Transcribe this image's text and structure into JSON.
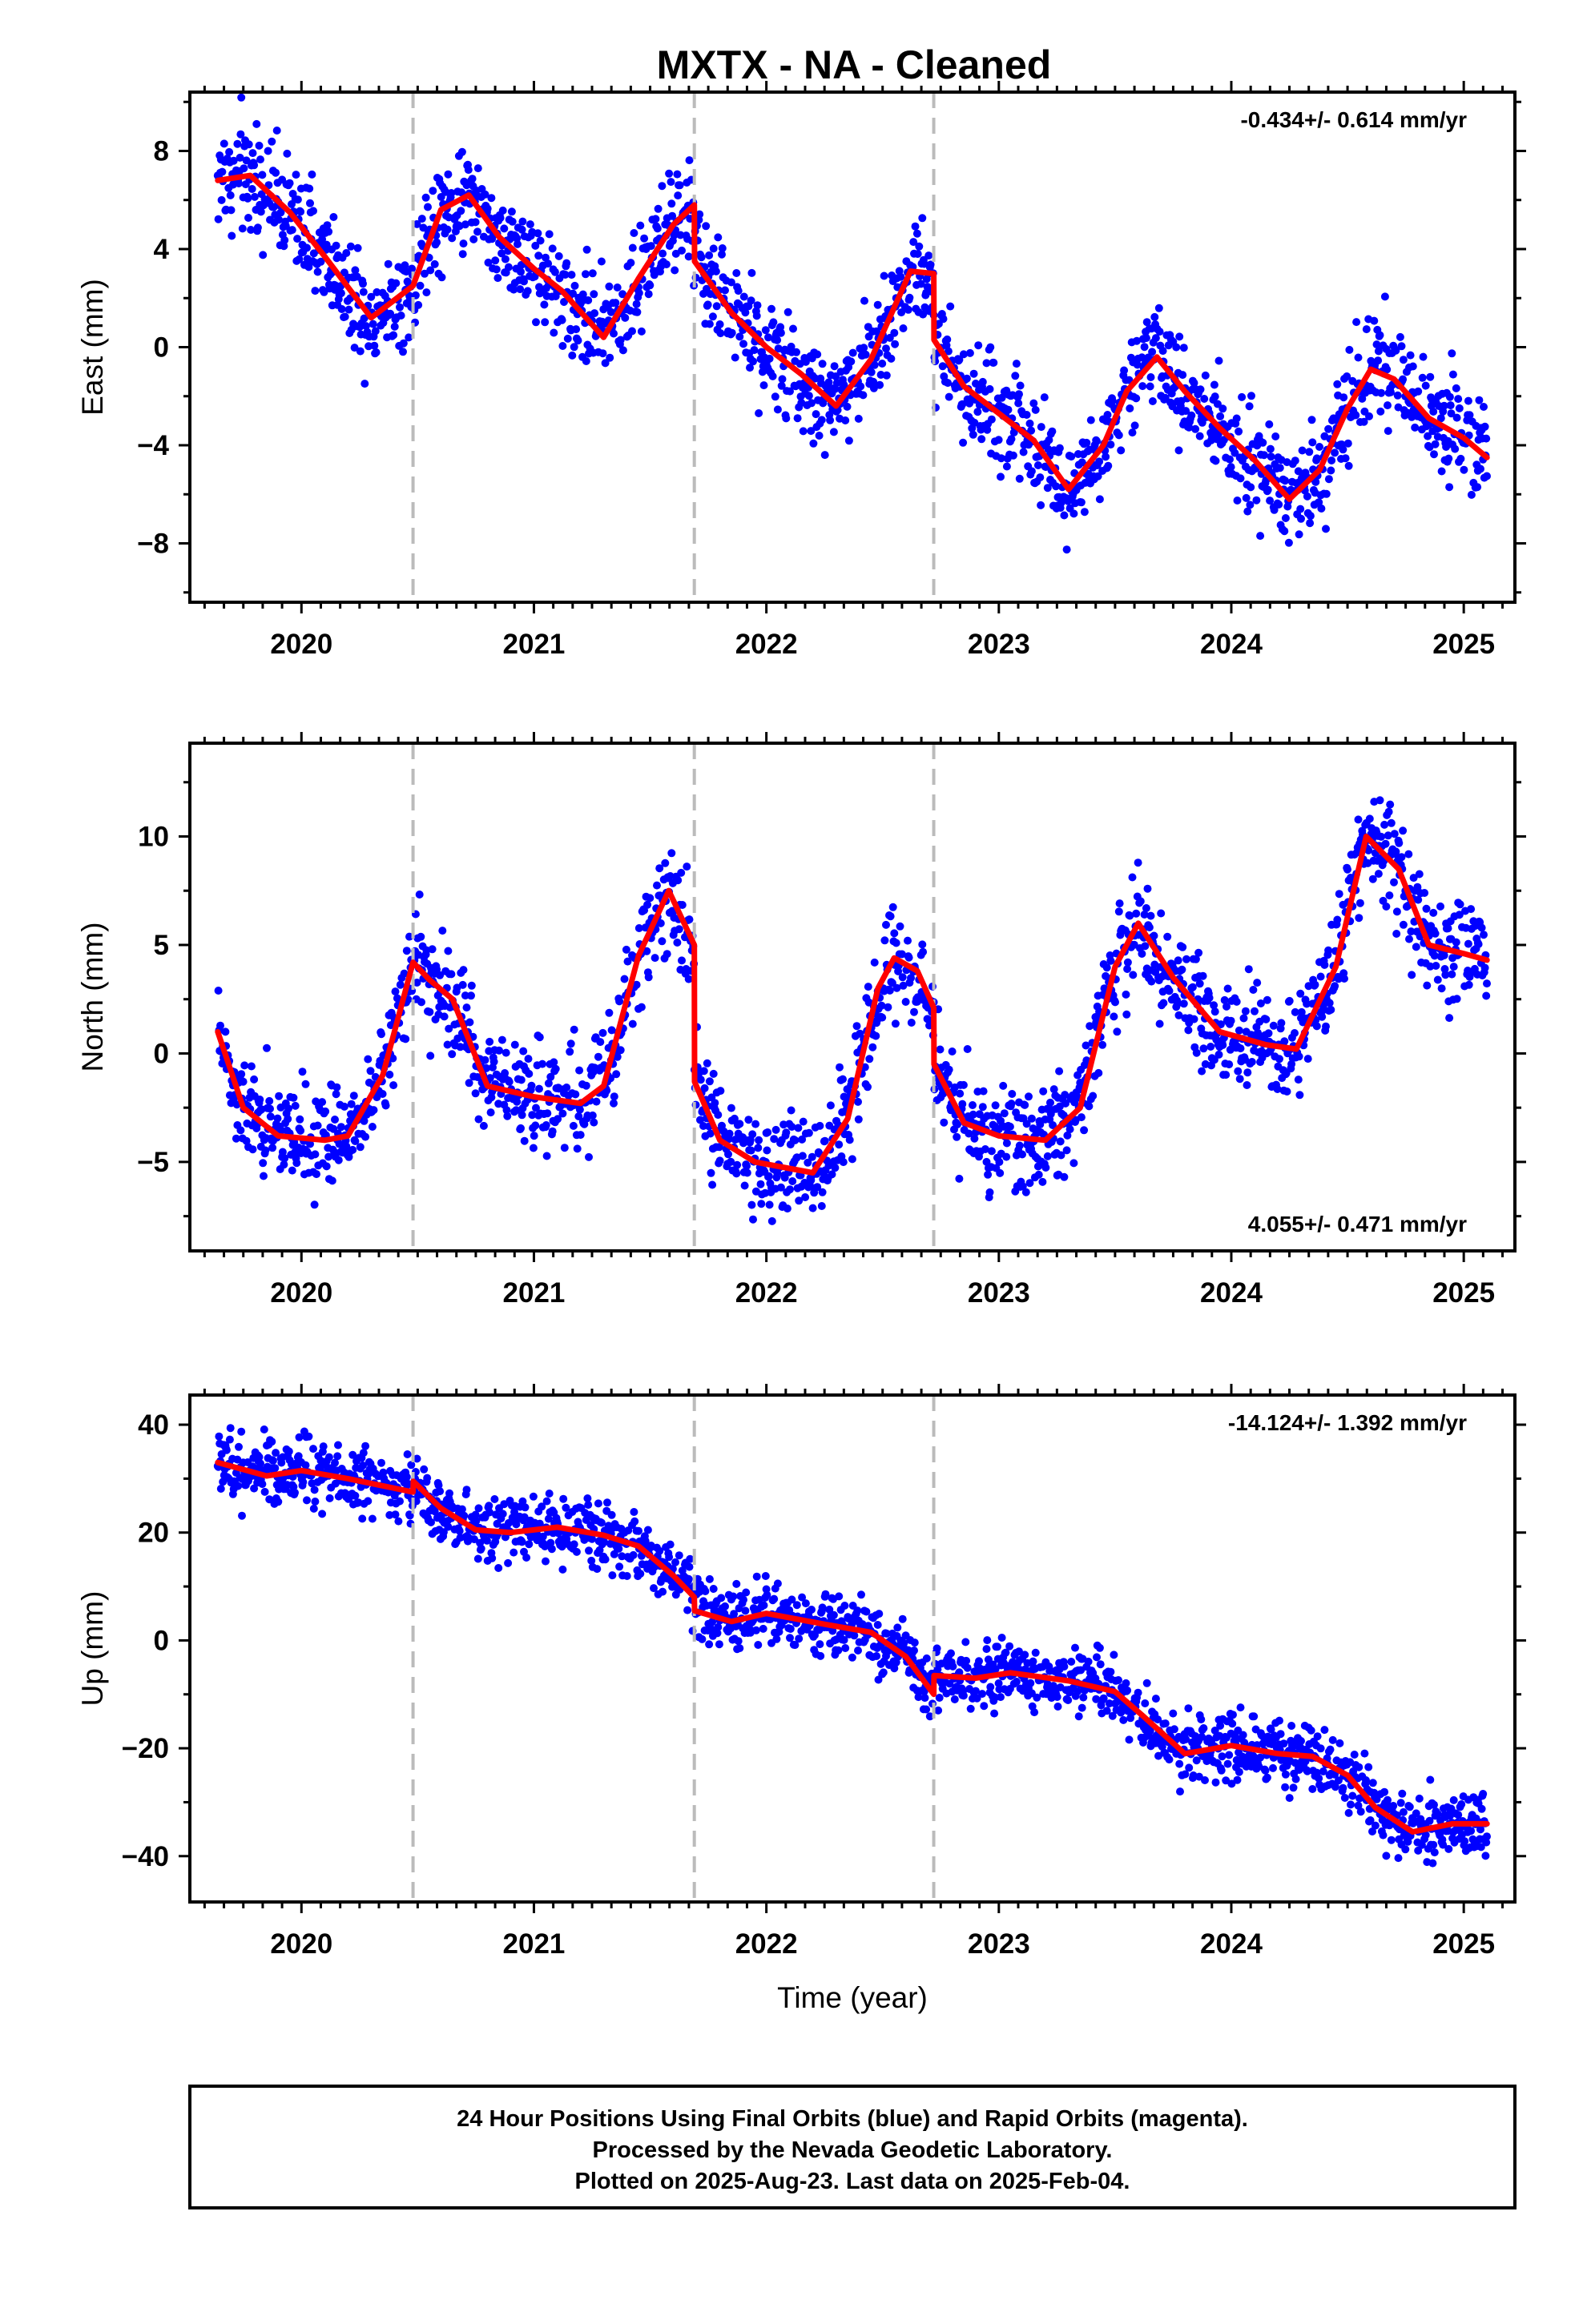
{
  "title": "MXTX  - NA - Cleaned",
  "footer": {
    "lines": [
      "24 Hour Positions Using Final Orbits (blue) and Rapid Orbits (magenta).",
      "Processed by the Nevada Geodetic Laboratory.",
      "Plotted on 2025-Aug-23. Last data on 2025-Feb-04."
    ]
  },
  "colors": {
    "points": "#0000ff",
    "model": "#ff0000",
    "dashed_lines": "#bbbbbb",
    "frame": "#000000"
  },
  "chart_data": [
    {
      "type": "scatter",
      "ylabel": "East (mm)",
      "xlabel": "",
      "rate": "-0.434+/- 0.614 mm/yr",
      "rate_placement": "top-right",
      "xlim": [
        2019.52,
        2025.22
      ],
      "ylim": [
        -10.4,
        10.4
      ],
      "x_ticks": [
        2020,
        2021,
        2022,
        2023,
        2024,
        2025
      ],
      "x_tick_labels": [
        "2020",
        "2021",
        "2022",
        "2023",
        "2024",
        "2025"
      ],
      "y_ticks": [
        -8,
        -4,
        0,
        4,
        8
      ],
      "y_tick_labels": [
        "−8",
        "−4",
        "0",
        "4",
        "8"
      ],
      "breaks": [
        2020.48,
        2021.69,
        2022.72
      ],
      "noise": 1.1,
      "model": {
        "x": [
          2019.64,
          2019.78,
          2019.95,
          2020.1,
          2020.3,
          2020.48,
          2020.6,
          2020.72,
          2020.85,
          2021.0,
          2021.12,
          2021.3,
          2021.45,
          2021.6,
          2021.69,
          2021.691,
          2021.85,
          2022.0,
          2022.15,
          2022.3,
          2022.45,
          2022.62,
          2022.72,
          2022.721,
          2022.85,
          2023.0,
          2023.15,
          2023.3,
          2023.45,
          2023.55,
          2023.68,
          2023.8,
          2023.95,
          2024.1,
          2024.25,
          2024.38,
          2024.5,
          2024.6,
          2024.7,
          2024.85,
          2025.0,
          2025.1
        ],
        "y": [
          6.8,
          7.0,
          5.5,
          3.7,
          1.2,
          2.5,
          5.6,
          6.2,
          4.5,
          3.2,
          2.3,
          0.4,
          2.8,
          5.0,
          5.8,
          3.5,
          1.4,
          0.0,
          -1.1,
          -2.4,
          -0.5,
          3.1,
          3.0,
          0.3,
          -1.6,
          -2.7,
          -3.8,
          -5.8,
          -4.0,
          -1.8,
          -0.4,
          -1.8,
          -3.3,
          -4.6,
          -6.2,
          -5.0,
          -2.5,
          -0.9,
          -1.3,
          -2.9,
          -3.7,
          -4.5
        ]
      }
    },
    {
      "type": "scatter",
      "ylabel": "North (mm)",
      "xlabel": "",
      "rate": "4.055+/- 0.471 mm/yr",
      "rate_placement": "bottom-right",
      "xlim": [
        2019.52,
        2025.22
      ],
      "ylim": [
        -9.1,
        14.3
      ],
      "x_ticks": [
        2020,
        2021,
        2022,
        2023,
        2024,
        2025
      ],
      "x_tick_labels": [
        "2020",
        "2021",
        "2022",
        "2023",
        "2024",
        "2025"
      ],
      "y_ticks": [
        -5,
        0,
        5,
        10
      ],
      "y_tick_labels": [
        "−5",
        "0",
        "5",
        "10"
      ],
      "breaks": [
        2020.48,
        2021.69,
        2022.72
      ],
      "noise": 1.2,
      "model": {
        "x": [
          2019.64,
          2019.75,
          2019.9,
          2020.1,
          2020.2,
          2020.35,
          2020.48,
          2020.55,
          2020.65,
          2020.8,
          2021.0,
          2021.2,
          2021.3,
          2021.45,
          2021.58,
          2021.69,
          2021.691,
          2021.8,
          2021.95,
          2022.2,
          2022.35,
          2022.48,
          2022.55,
          2022.65,
          2022.72,
          2022.721,
          2022.85,
          2023.0,
          2023.2,
          2023.35,
          2023.5,
          2023.6,
          2023.75,
          2023.95,
          2024.15,
          2024.28,
          2024.45,
          2024.58,
          2024.72,
          2024.85,
          2025.0,
          2025.1
        ],
        "y": [
          1.0,
          -2.5,
          -3.8,
          -4.0,
          -3.8,
          -1.0,
          4.2,
          3.4,
          2.5,
          -1.5,
          -2.0,
          -2.3,
          -1.5,
          4.5,
          7.5,
          5.0,
          -1.3,
          -4.0,
          -5.0,
          -5.5,
          -3.0,
          3.0,
          4.4,
          3.8,
          2.1,
          -0.5,
          -3.2,
          -3.8,
          -4.0,
          -2.5,
          4.0,
          6.0,
          3.5,
          1.0,
          0.4,
          0.2,
          4.0,
          10.0,
          8.5,
          5.0,
          4.6,
          4.3
        ]
      }
    },
    {
      "type": "scatter",
      "ylabel": "Up (mm)",
      "xlabel": "Time (year)",
      "rate": "-14.124+/- 1.392 mm/yr",
      "rate_placement": "top-right",
      "xlim": [
        2019.52,
        2025.22
      ],
      "ylim": [
        -48.5,
        45.5
      ],
      "x_ticks": [
        2020,
        2021,
        2022,
        2023,
        2024,
        2025
      ],
      "x_tick_labels": [
        "2020",
        "2021",
        "2022",
        "2023",
        "2024",
        "2025"
      ],
      "y_ticks": [
        -40,
        -20,
        0,
        20,
        40
      ],
      "y_tick_labels": [
        "−40",
        "−20",
        "0",
        "20",
        "40"
      ],
      "breaks": [
        2020.48,
        2021.69,
        2022.72
      ],
      "noise": 3.0,
      "model": {
        "x": [
          2019.64,
          2019.85,
          2020.0,
          2020.2,
          2020.48,
          2020.481,
          2020.6,
          2020.75,
          2020.9,
          2021.1,
          2021.3,
          2021.45,
          2021.6,
          2021.69,
          2021.691,
          2021.85,
          2022.0,
          2022.25,
          2022.45,
          2022.6,
          2022.72,
          2022.721,
          2022.9,
          2023.05,
          2023.3,
          2023.5,
          2023.62,
          2023.8,
          2024.0,
          2024.2,
          2024.35,
          2024.5,
          2024.62,
          2024.78,
          2024.95,
          2025.1
        ],
        "y": [
          33.0,
          30.5,
          31.5,
          30.0,
          27.5,
          29.5,
          24.5,
          20.5,
          20.0,
          21.0,
          19.5,
          17.5,
          12.0,
          8.0,
          5.5,
          3.5,
          5.0,
          3.0,
          1.5,
          -3.0,
          -10.0,
          -6.5,
          -7.0,
          -6.0,
          -7.5,
          -9.5,
          -14.0,
          -21.0,
          -19.5,
          -21.0,
          -21.5,
          -25.0,
          -31.0,
          -35.5,
          -34.0,
          -34.0
        ]
      }
    }
  ]
}
